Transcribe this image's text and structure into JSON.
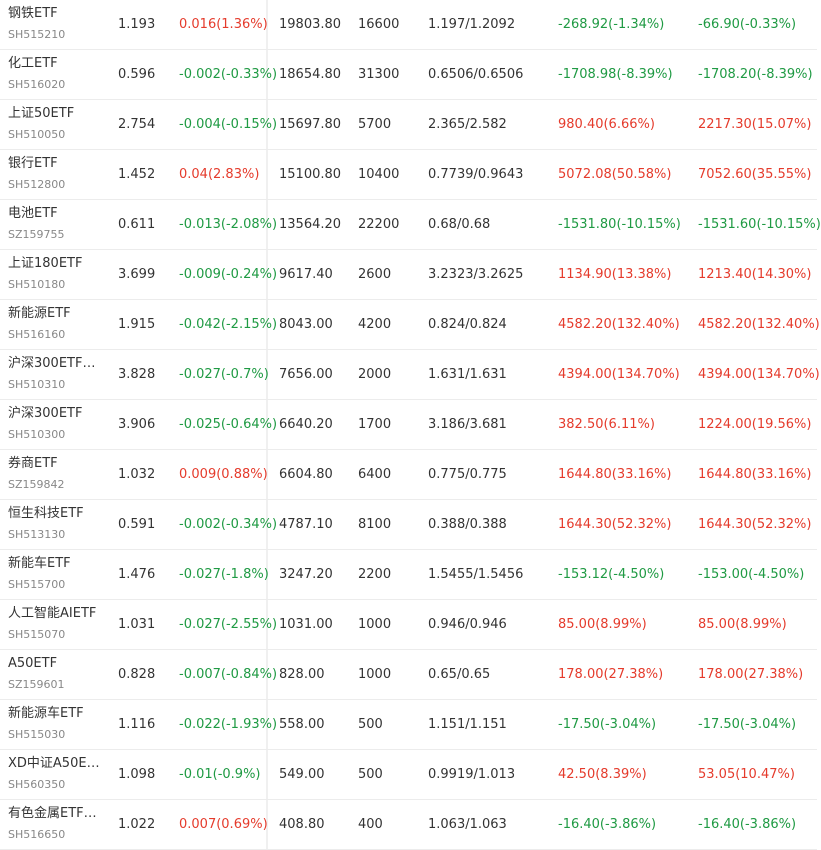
{
  "colors": {
    "up": "#e53b2c",
    "down": "#1f9a43"
  },
  "rows": [
    {
      "name": "钢铁ETF",
      "code": "SH515210",
      "price": "1.193",
      "change": "0.016(1.36%)",
      "change_dir": "up",
      "market_value": "19803.80",
      "quantity": "16600",
      "cost": "1.197/1.2092",
      "pnl_a": "-268.92(-1.34%)",
      "pnl_a_dir": "down",
      "pnl_b": "-66.90(-0.33%)",
      "pnl_b_dir": "down"
    },
    {
      "name": "化工ETF",
      "code": "SH516020",
      "price": "0.596",
      "change": "-0.002(-0.33%)",
      "change_dir": "down",
      "market_value": "18654.80",
      "quantity": "31300",
      "cost": "0.6506/0.6506",
      "pnl_a": "-1708.98(-8.39%)",
      "pnl_a_dir": "down",
      "pnl_b": "-1708.20(-8.39%)",
      "pnl_b_dir": "down"
    },
    {
      "name": "上证50ETF",
      "code": "SH510050",
      "price": "2.754",
      "change": "-0.004(-0.15%)",
      "change_dir": "down",
      "market_value": "15697.80",
      "quantity": "5700",
      "cost": "2.365/2.582",
      "pnl_a": "980.40(6.66%)",
      "pnl_a_dir": "up",
      "pnl_b": "2217.30(15.07%)",
      "pnl_b_dir": "up"
    },
    {
      "name": "银行ETF",
      "code": "SH512800",
      "price": "1.452",
      "change": "0.04(2.83%)",
      "change_dir": "up",
      "market_value": "15100.80",
      "quantity": "10400",
      "cost": "0.7739/0.9643",
      "pnl_a": "5072.08(50.58%)",
      "pnl_a_dir": "up",
      "pnl_b": "7052.60(35.55%)",
      "pnl_b_dir": "up"
    },
    {
      "name": "电池ETF",
      "code": "SZ159755",
      "price": "0.611",
      "change": "-0.013(-2.08%)",
      "change_dir": "down",
      "market_value": "13564.20",
      "quantity": "22200",
      "cost": "0.68/0.68",
      "pnl_a": "-1531.80(-10.15%)",
      "pnl_a_dir": "down",
      "pnl_b": "-1531.60(-10.15%)",
      "pnl_b_dir": "down"
    },
    {
      "name": "上证180ETF",
      "code": "SH510180",
      "price": "3.699",
      "change": "-0.009(-0.24%)",
      "change_dir": "down",
      "market_value": "9617.40",
      "quantity": "2600",
      "cost": "3.2323/3.2625",
      "pnl_a": "1134.90(13.38%)",
      "pnl_a_dir": "up",
      "pnl_b": "1213.40(14.30%)",
      "pnl_b_dir": "up"
    },
    {
      "name": "新能源ETF",
      "code": "SH516160",
      "price": "1.915",
      "change": "-0.042(-2.15%)",
      "change_dir": "down",
      "market_value": "8043.00",
      "quantity": "4200",
      "cost": "0.824/0.824",
      "pnl_a": "4582.20(132.40%)",
      "pnl_a_dir": "up",
      "pnl_b": "4582.20(132.40%)",
      "pnl_b_dir": "up"
    },
    {
      "name": "沪深300ETF…",
      "code": "SH510310",
      "price": "3.828",
      "change": "-0.027(-0.7%)",
      "change_dir": "down",
      "market_value": "7656.00",
      "quantity": "2000",
      "cost": "1.631/1.631",
      "pnl_a": "4394.00(134.70%)",
      "pnl_a_dir": "up",
      "pnl_b": "4394.00(134.70%)",
      "pnl_b_dir": "up"
    },
    {
      "name": "沪深300ETF",
      "code": "SH510300",
      "price": "3.906",
      "change": "-0.025(-0.64%)",
      "change_dir": "down",
      "market_value": "6640.20",
      "quantity": "1700",
      "cost": "3.186/3.681",
      "pnl_a": "382.50(6.11%)",
      "pnl_a_dir": "up",
      "pnl_b": "1224.00(19.56%)",
      "pnl_b_dir": "up"
    },
    {
      "name": "券商ETF",
      "code": "SZ159842",
      "price": "1.032",
      "change": "0.009(0.88%)",
      "change_dir": "up",
      "market_value": "6604.80",
      "quantity": "6400",
      "cost": "0.775/0.775",
      "pnl_a": "1644.80(33.16%)",
      "pnl_a_dir": "up",
      "pnl_b": "1644.80(33.16%)",
      "pnl_b_dir": "up"
    },
    {
      "name": "恒生科技ETF",
      "code": "SH513130",
      "price": "0.591",
      "change": "-0.002(-0.34%)",
      "change_dir": "down",
      "market_value": "4787.10",
      "quantity": "8100",
      "cost": "0.388/0.388",
      "pnl_a": "1644.30(52.32%)",
      "pnl_a_dir": "up",
      "pnl_b": "1644.30(52.32%)",
      "pnl_b_dir": "up"
    },
    {
      "name": "新能车ETF",
      "code": "SH515700",
      "price": "1.476",
      "change": "-0.027(-1.8%)",
      "change_dir": "down",
      "market_value": "3247.20",
      "quantity": "2200",
      "cost": "1.5455/1.5456",
      "pnl_a": "-153.12(-4.50%)",
      "pnl_a_dir": "down",
      "pnl_b": "-153.00(-4.50%)",
      "pnl_b_dir": "down"
    },
    {
      "name": "人工智能AIETF",
      "code": "SH515070",
      "price": "1.031",
      "change": "-0.027(-2.55%)",
      "change_dir": "down",
      "market_value": "1031.00",
      "quantity": "1000",
      "cost": "0.946/0.946",
      "pnl_a": "85.00(8.99%)",
      "pnl_a_dir": "up",
      "pnl_b": "85.00(8.99%)",
      "pnl_b_dir": "up"
    },
    {
      "name": "A50ETF",
      "code": "SZ159601",
      "price": "0.828",
      "change": "-0.007(-0.84%)",
      "change_dir": "down",
      "market_value": "828.00",
      "quantity": "1000",
      "cost": "0.65/0.65",
      "pnl_a": "178.00(27.38%)",
      "pnl_a_dir": "up",
      "pnl_b": "178.00(27.38%)",
      "pnl_b_dir": "up"
    },
    {
      "name": "新能源车ETF",
      "code": "SH515030",
      "price": "1.116",
      "change": "-0.022(-1.93%)",
      "change_dir": "down",
      "market_value": "558.00",
      "quantity": "500",
      "cost": "1.151/1.151",
      "pnl_a": "-17.50(-3.04%)",
      "pnl_a_dir": "down",
      "pnl_b": "-17.50(-3.04%)",
      "pnl_b_dir": "down"
    },
    {
      "name": "XD中证A50E…",
      "code": "SH560350",
      "price": "1.098",
      "change": "-0.01(-0.9%)",
      "change_dir": "down",
      "market_value": "549.00",
      "quantity": "500",
      "cost": "0.9919/1.013",
      "pnl_a": "42.50(8.39%)",
      "pnl_a_dir": "up",
      "pnl_b": "53.05(10.47%)",
      "pnl_b_dir": "up"
    },
    {
      "name": "有色金属ETF…",
      "code": "SH516650",
      "price": "1.022",
      "change": "0.007(0.69%)",
      "change_dir": "up",
      "market_value": "408.80",
      "quantity": "400",
      "cost": "1.063/1.063",
      "pnl_a": "-16.40(-3.86%)",
      "pnl_a_dir": "down",
      "pnl_b": "-16.40(-3.86%)",
      "pnl_b_dir": "down"
    }
  ]
}
